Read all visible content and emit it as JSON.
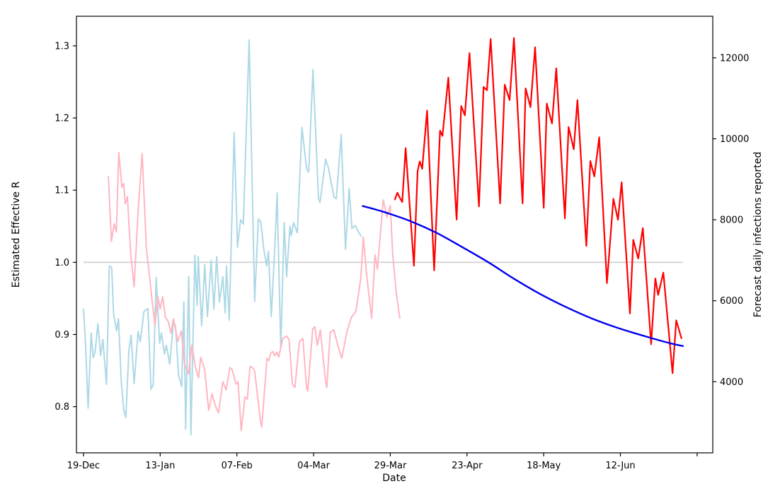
{
  "figure": {
    "xlabel": "Date",
    "ylabel_left": "Estimated Effective R",
    "ylabel_right": "Forecast daily infections reported"
  },
  "chart_data": {
    "type": "line",
    "title": "",
    "xlabel": "Date",
    "ylabel_left": "Estimated Effective R",
    "ylabel_right": "Forecast daily infections reported",
    "grid": false,
    "legend": "none",
    "x_axis": {
      "unit": "days since 19-Dec",
      "range_days": [
        -2.3,
        205.1
      ],
      "ticks": [
        {
          "day": 0,
          "label": "19-Dec"
        },
        {
          "day": 25,
          "label": "13-Jan"
        },
        {
          "day": 50,
          "label": "07-Feb"
        },
        {
          "day": 75,
          "label": "04-Mar"
        },
        {
          "day": 100,
          "label": "29-Mar"
        },
        {
          "day": 125,
          "label": "23-Apr"
        },
        {
          "day": 150,
          "label": "18-May"
        },
        {
          "day": 175,
          "label": "12-Jun"
        },
        {
          "day": 200,
          "label": ""
        }
      ]
    },
    "y_left": {
      "range": [
        0.736,
        1.341
      ],
      "ticks": [
        {
          "v": 0.8,
          "label": "0.8"
        },
        {
          "v": 0.9,
          "label": "0.9"
        },
        {
          "v": 1.0,
          "label": "1.0"
        },
        {
          "v": 1.1,
          "label": "1.1"
        },
        {
          "v": 1.2,
          "label": "1.2"
        },
        {
          "v": 1.3,
          "label": "1.3"
        }
      ]
    },
    "y_right": {
      "range": [
        2244,
        13026
      ],
      "ticks": [
        {
          "v": 4000,
          "label": "4000"
        },
        {
          "v": 6000,
          "label": "6000"
        },
        {
          "v": 8000,
          "label": "8000"
        },
        {
          "v": 10000,
          "label": "10000"
        },
        {
          "v": 12000,
          "label": "12000"
        }
      ]
    },
    "reference_line": {
      "name": "r-equals-one",
      "axis": "left",
      "value": 1.0,
      "color": "#d3d3d3",
      "span_days": [
        0,
        195.4
      ],
      "width": 1.8
    },
    "series": [
      {
        "name": "estimated-r-historical",
        "axis": "left",
        "color": "#add8e6",
        "width": 2,
        "smooth": false,
        "points": [
          [
            0,
            0.935
          ],
          [
            0.6,
            0.893
          ],
          [
            1.5,
            0.798
          ],
          [
            2.5,
            0.902
          ],
          [
            3.2,
            0.868
          ],
          [
            3.8,
            0.876
          ],
          [
            4.7,
            0.915
          ],
          [
            5.6,
            0.871
          ],
          [
            6.3,
            0.893
          ],
          [
            7.5,
            0.831
          ],
          [
            8.4,
            0.995
          ],
          [
            9.2,
            0.993
          ],
          [
            9.8,
            0.929
          ],
          [
            10.8,
            0.905
          ],
          [
            11.4,
            0.922
          ],
          [
            12.3,
            0.836
          ],
          [
            13.1,
            0.795
          ],
          [
            13.8,
            0.785
          ],
          [
            14.8,
            0.878
          ],
          [
            15.5,
            0.899
          ],
          [
            16.5,
            0.832
          ],
          [
            17.8,
            0.904
          ],
          [
            18.5,
            0.89
          ],
          [
            19.7,
            0.932
          ],
          [
            21,
            0.936
          ],
          [
            22,
            0.824
          ],
          [
            22.7,
            0.83
          ],
          [
            23.7,
            0.979
          ],
          [
            24.8,
            0.888
          ],
          [
            25.4,
            0.902
          ],
          [
            26.4,
            0.873
          ],
          [
            27,
            0.885
          ],
          [
            28.1,
            0.859
          ],
          [
            29.3,
            0.917
          ],
          [
            30,
            0.912
          ],
          [
            31,
            0.844
          ],
          [
            32,
            0.828
          ],
          [
            32.7,
            0.945
          ],
          [
            33.3,
            0.769
          ],
          [
            34.3,
            0.98
          ],
          [
            35,
            0.761
          ],
          [
            36.3,
            1.01
          ],
          [
            37,
            0.94
          ],
          [
            37.4,
            1.008
          ],
          [
            38.5,
            0.912
          ],
          [
            39.5,
            0.997
          ],
          [
            40.4,
            0.925
          ],
          [
            41.6,
            1.003
          ],
          [
            42.5,
            0.935
          ],
          [
            43.4,
            1.008
          ],
          [
            44.3,
            0.945
          ],
          [
            45.4,
            0.98
          ],
          [
            46.2,
            0.93
          ],
          [
            46.6,
            0.995
          ],
          [
            47.5,
            0.92
          ],
          [
            49.1,
            1.18
          ],
          [
            50.2,
            1.021
          ],
          [
            51.2,
            1.059
          ],
          [
            52.1,
            1.053
          ],
          [
            54,
            1.308
          ],
          [
            55.8,
            0.946
          ],
          [
            57,
            1.06
          ],
          [
            57.8,
            1.056
          ],
          [
            58.7,
            1.02
          ],
          [
            59.7,
            0.995
          ],
          [
            60.3,
            1.015
          ],
          [
            61.2,
            0.925
          ],
          [
            62.4,
            1.024
          ],
          [
            63.1,
            1.096
          ],
          [
            64.3,
            0.881
          ],
          [
            65.4,
            1.055
          ],
          [
            66.2,
            0.98
          ],
          [
            67.3,
            1.05
          ],
          [
            67.7,
            1.037
          ],
          [
            68.5,
            1.055
          ],
          [
            69.7,
            1.041
          ],
          [
            71.2,
            1.187
          ],
          [
            72.7,
            1.13
          ],
          [
            73.4,
            1.125
          ],
          [
            74.8,
            1.267
          ],
          [
            76.6,
            1.088
          ],
          [
            77.1,
            1.083
          ],
          [
            78.9,
            1.143
          ],
          [
            79.8,
            1.131
          ],
          [
            81.6,
            1.091
          ],
          [
            82.4,
            1.088
          ],
          [
            84,
            1.177
          ],
          [
            85.4,
            1.018
          ],
          [
            86.6,
            1.102
          ],
          [
            87.5,
            1.047
          ],
          [
            88.5,
            1.051
          ],
          [
            89.5,
            1.043
          ],
          [
            90.5,
            1.036
          ]
        ]
      },
      {
        "name": "reported-infections-historical",
        "axis": "right",
        "color": "#ffb6c1",
        "width": 2,
        "smooth": false,
        "points": [
          [
            8.1,
            9070
          ],
          [
            9.1,
            7460
          ],
          [
            10,
            7900
          ],
          [
            10.7,
            7700
          ],
          [
            11.5,
            9660
          ],
          [
            12.5,
            8800
          ],
          [
            13.1,
            8900
          ],
          [
            13.6,
            8390
          ],
          [
            14.3,
            8570
          ],
          [
            15.4,
            7160
          ],
          [
            16.5,
            6340
          ],
          [
            17.8,
            8200
          ],
          [
            19.1,
            9640
          ],
          [
            20.5,
            7300
          ],
          [
            21.5,
            6600
          ],
          [
            22.5,
            5900
          ],
          [
            23.3,
            5400
          ],
          [
            24.2,
            6100
          ],
          [
            25,
            5800
          ],
          [
            25.8,
            6100
          ],
          [
            26.7,
            5600
          ],
          [
            27.7,
            5470
          ],
          [
            28.5,
            5200
          ],
          [
            29.3,
            5550
          ],
          [
            30,
            5300
          ],
          [
            30.7,
            5000
          ],
          [
            31.9,
            5250
          ],
          [
            33,
            4400
          ],
          [
            34.2,
            4200
          ],
          [
            35.3,
            4900
          ],
          [
            36.5,
            4350
          ],
          [
            37.5,
            4100
          ],
          [
            38.2,
            4600
          ],
          [
            39.5,
            4300
          ],
          [
            40.8,
            3300
          ],
          [
            41.9,
            3700
          ],
          [
            43,
            3400
          ],
          [
            44,
            3230
          ],
          [
            45.4,
            4000
          ],
          [
            46.5,
            3800
          ],
          [
            47.7,
            4350
          ],
          [
            48.5,
            4290
          ],
          [
            49.7,
            3940
          ],
          [
            50.4,
            4000
          ],
          [
            51.4,
            2790
          ],
          [
            52.6,
            3620
          ],
          [
            53.4,
            3570
          ],
          [
            54.3,
            4380
          ],
          [
            55.1,
            4350
          ],
          [
            55.8,
            4260
          ],
          [
            57.7,
            3015
          ],
          [
            58.1,
            2880
          ],
          [
            59.8,
            4580
          ],
          [
            60.4,
            4520
          ],
          [
            61,
            4700
          ],
          [
            61.7,
            4750
          ],
          [
            62.3,
            4640
          ],
          [
            63,
            4730
          ],
          [
            63.6,
            4610
          ],
          [
            65,
            5070
          ],
          [
            66.2,
            5130
          ],
          [
            67,
            5040
          ],
          [
            68.1,
            3940
          ],
          [
            68.9,
            3860
          ],
          [
            70.4,
            4990
          ],
          [
            71.5,
            5070
          ],
          [
            72.7,
            3860
          ],
          [
            73.1,
            3770
          ],
          [
            74.7,
            5300
          ],
          [
            75.4,
            5360
          ],
          [
            76.2,
            4900
          ],
          [
            77.2,
            5280
          ],
          [
            78.9,
            4000
          ],
          [
            79.3,
            3860
          ],
          [
            80.4,
            5220
          ],
          [
            81.6,
            5280
          ],
          [
            83.1,
            4840
          ],
          [
            84.2,
            4580
          ],
          [
            85.8,
            5220
          ],
          [
            87.3,
            5590
          ],
          [
            88.8,
            5740
          ],
          [
            90.4,
            6560
          ],
          [
            91.2,
            7570
          ],
          [
            92.3,
            6630
          ],
          [
            93.9,
            5570
          ],
          [
            95,
            7130
          ],
          [
            95.8,
            6780
          ],
          [
            97.7,
            8490
          ],
          [
            98.9,
            8060
          ],
          [
            100,
            8350
          ],
          [
            100.8,
            7130
          ],
          [
            102,
            6150
          ],
          [
            103.1,
            5570
          ]
        ]
      },
      {
        "name": "forecast-infections",
        "axis": "right",
        "color": "#ff0000",
        "width": 2.2,
        "smooth": false,
        "points": [
          [
            101.5,
            8500
          ],
          [
            102.3,
            8670
          ],
          [
            103,
            8560
          ],
          [
            103.9,
            8440
          ],
          [
            105,
            9770
          ],
          [
            107.7,
            6865
          ],
          [
            108.9,
            9200
          ],
          [
            109.6,
            9440
          ],
          [
            110.4,
            9260
          ],
          [
            112,
            10695
          ],
          [
            114.3,
            6750
          ],
          [
            116.2,
            10200
          ],
          [
            117,
            10070
          ],
          [
            118.9,
            11510
          ],
          [
            121.6,
            8005
          ],
          [
            123.1,
            10810
          ],
          [
            124.3,
            10580
          ],
          [
            125.8,
            12115
          ],
          [
            128.9,
            8330
          ],
          [
            130.4,
            11280
          ],
          [
            131.5,
            11200
          ],
          [
            132.7,
            12465
          ],
          [
            135.8,
            8405
          ],
          [
            137.3,
            11335
          ],
          [
            138.9,
            10955
          ],
          [
            140.3,
            12490
          ],
          [
            143.1,
            8405
          ],
          [
            144.1,
            11245
          ],
          [
            145.7,
            10780
          ],
          [
            147.2,
            12260
          ],
          [
            150,
            8295
          ],
          [
            151,
            10870
          ],
          [
            152.7,
            10375
          ],
          [
            154.1,
            11740
          ],
          [
            156.9,
            8035
          ],
          [
            158.1,
            10290
          ],
          [
            159.8,
            9740
          ],
          [
            161,
            10955
          ],
          [
            163.9,
            7355
          ],
          [
            165.2,
            9450
          ],
          [
            166.5,
            9070
          ],
          [
            168.1,
            10035
          ],
          [
            170.6,
            6435
          ],
          [
            172.7,
            8520
          ],
          [
            174.2,
            8000
          ],
          [
            175.4,
            8925
          ],
          [
            178.1,
            5685
          ],
          [
            179.2,
            7505
          ],
          [
            180.8,
            7043
          ],
          [
            182.3,
            7795
          ],
          [
            185,
            4925
          ],
          [
            186.4,
            6550
          ],
          [
            187.3,
            6145
          ],
          [
            189,
            6695
          ],
          [
            192,
            4210
          ],
          [
            193.2,
            5515
          ],
          [
            194.9,
            5073
          ]
        ]
      },
      {
        "name": "forecast-r",
        "axis": "left",
        "color": "#0000ee",
        "width": 2.4,
        "smooth": true,
        "points": [
          [
            91,
            1.078
          ],
          [
            94.5,
            1.074
          ],
          [
            98.5,
            1.069
          ],
          [
            106.6,
            1.057
          ],
          [
            115,
            1.041
          ],
          [
            123.5,
            1.021
          ],
          [
            132,
            1.0
          ],
          [
            140.4,
            0.977
          ],
          [
            148.9,
            0.956
          ],
          [
            157.3,
            0.938
          ],
          [
            165.8,
            0.922
          ],
          [
            174.2,
            0.909
          ],
          [
            182.7,
            0.898
          ],
          [
            191.1,
            0.888
          ],
          [
            195.4,
            0.884
          ]
        ]
      }
    ]
  }
}
